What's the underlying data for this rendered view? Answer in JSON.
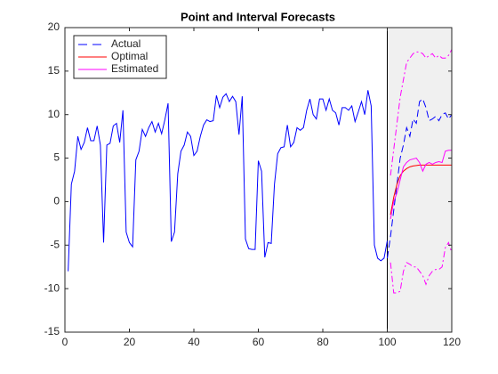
{
  "chart_data": {
    "type": "line",
    "title": "Point and Interval Forecasts",
    "xlim": [
      0,
      120
    ],
    "xticks": [
      0,
      20,
      40,
      60,
      80,
      100,
      120
    ],
    "ylim": [
      -15,
      20
    ],
    "yticks": [
      -15,
      -10,
      -5,
      0,
      5,
      10,
      15,
      20
    ],
    "shaded_xlim": [
      100,
      120
    ],
    "shade_color": "#f0f0f0",
    "legend": "upper left",
    "series": [
      {
        "color": "#0000ff",
        "dash": "solid",
        "x": [
          1,
          2,
          3,
          4,
          5,
          6,
          7,
          8,
          9,
          10,
          11,
          12,
          13,
          14,
          15,
          16,
          17,
          18,
          19,
          20,
          21,
          22,
          23,
          24,
          25,
          26,
          27,
          28,
          29,
          30,
          31,
          32,
          33,
          34,
          35,
          36,
          37,
          38,
          39,
          40,
          41,
          42,
          43,
          44,
          45,
          46,
          47,
          48,
          49,
          50,
          51,
          52,
          53,
          54,
          55,
          56,
          57,
          58,
          59,
          60,
          61,
          62,
          63,
          64,
          65,
          66,
          67,
          68,
          69,
          70,
          71,
          72,
          73,
          74,
          75,
          76,
          77,
          78,
          79,
          80,
          81,
          82,
          83,
          84,
          85,
          86,
          87,
          88,
          89,
          90,
          91,
          92,
          93,
          94,
          95,
          96,
          97,
          98,
          99,
          100
        ],
        "values": [
          -8,
          2,
          3.5,
          7.5,
          6,
          6.8,
          8.5,
          7,
          7,
          8.7,
          6.5,
          -4.7,
          6.5,
          6.7,
          8.7,
          9,
          6.8,
          10.5,
          -3.5,
          -4.7,
          -5.2,
          4.8,
          5.8,
          8.3,
          7.5,
          8.5,
          9.2,
          8,
          9,
          7.8,
          9.4,
          11.3,
          -4.6,
          -3.5,
          3.2,
          5.8,
          6.5,
          8,
          7.5,
          5.3,
          5.8,
          7.5,
          8.8,
          9.4,
          9.2,
          9.3,
          12.2,
          10.8,
          12,
          12.4,
          11.5,
          12.1,
          11.5,
          7.7,
          12.1,
          -4.3,
          -5.4,
          -5.5,
          -5.5,
          4.7,
          3.5,
          -6.4,
          -4.7,
          -4.8,
          2,
          5.5,
          6.2,
          6.3,
          8.8,
          6.3,
          6.8,
          8.5,
          8.2,
          8.5,
          10.5,
          11.8,
          10,
          9.5,
          11.8,
          11.8,
          10.5,
          11.8,
          10.5,
          10.2,
          8.8,
          10.8,
          10.8,
          10.5,
          11,
          9.2,
          10.3,
          11.5,
          10,
          12.8,
          11,
          -5,
          -6.5,
          -6.8,
          -6.5,
          -4.5
        ]
      },
      {
        "name": "Actual",
        "color": "#0000ff",
        "dash": "dashed",
        "x": [
          100,
          101,
          102,
          103,
          104,
          105,
          106,
          107,
          108,
          109,
          110,
          111,
          112,
          113,
          114,
          115,
          116,
          117,
          118,
          119,
          120
        ],
        "values": [
          -6.5,
          -4,
          -1,
          2,
          5,
          6.5,
          8.5,
          7.5,
          9.5,
          9,
          11.5,
          11.8,
          10.8,
          9.3,
          9.5,
          9.8,
          9.3,
          10,
          10.2,
          9.5,
          10
        ]
      },
      {
        "name": "Optimal",
        "color": "#ff0000",
        "dash": "solid",
        "x": [
          101,
          102,
          103,
          104,
          105,
          106,
          107,
          108,
          109,
          110,
          111,
          112,
          113,
          114,
          115,
          116,
          117,
          118,
          119,
          120
        ],
        "values": [
          -1.5,
          0.5,
          2,
          3,
          3.5,
          3.8,
          4,
          4.1,
          4.15,
          4.2,
          4.2,
          4.2,
          4.2,
          4.2,
          4.2,
          4.2,
          4.2,
          4.2,
          4.2,
          4.2
        ]
      },
      {
        "name": "Estimated",
        "color": "#ff00ff",
        "dash": "solid",
        "x": [
          101,
          102,
          103,
          104,
          105,
          106,
          107,
          108,
          109,
          110,
          111,
          112,
          113,
          114,
          115,
          116,
          117,
          118,
          119,
          120
        ],
        "values": [
          -2,
          0,
          1,
          2.5,
          4,
          4.5,
          4.8,
          4.9,
          5,
          4.5,
          3.5,
          4.3,
          4.5,
          4.3,
          4.5,
          4.6,
          4.5,
          5.8,
          5.9,
          5.9
        ]
      },
      {
        "color": "#ff00ff",
        "dash": "dashdot",
        "x": [
          101,
          102,
          103,
          104,
          105,
          106,
          107,
          108,
          109,
          110,
          111,
          112,
          113,
          114,
          115,
          116,
          117,
          118,
          119,
          120
        ],
        "values": [
          3,
          6,
          9,
          12,
          14,
          16,
          16.5,
          17,
          17.2,
          17.2,
          17,
          16.5,
          16.8,
          17,
          16.5,
          16.8,
          16.5,
          16.5,
          16.8,
          17.5
        ]
      },
      {
        "color": "#ff00ff",
        "dash": "dashdot",
        "x": [
          101,
          102,
          103,
          104,
          105,
          106,
          107,
          108,
          109,
          110,
          111,
          112,
          113,
          114,
          115,
          116,
          117,
          118,
          119,
          120
        ],
        "values": [
          -7,
          -10.5,
          -10.5,
          -10.3,
          -8,
          -7,
          -7.2,
          -7.5,
          -7.5,
          -8,
          -8.5,
          -9.5,
          -8.5,
          -8,
          -7.8,
          -7.8,
          -7.5,
          -5.3,
          -4.7,
          -5.9
        ]
      }
    ]
  }
}
